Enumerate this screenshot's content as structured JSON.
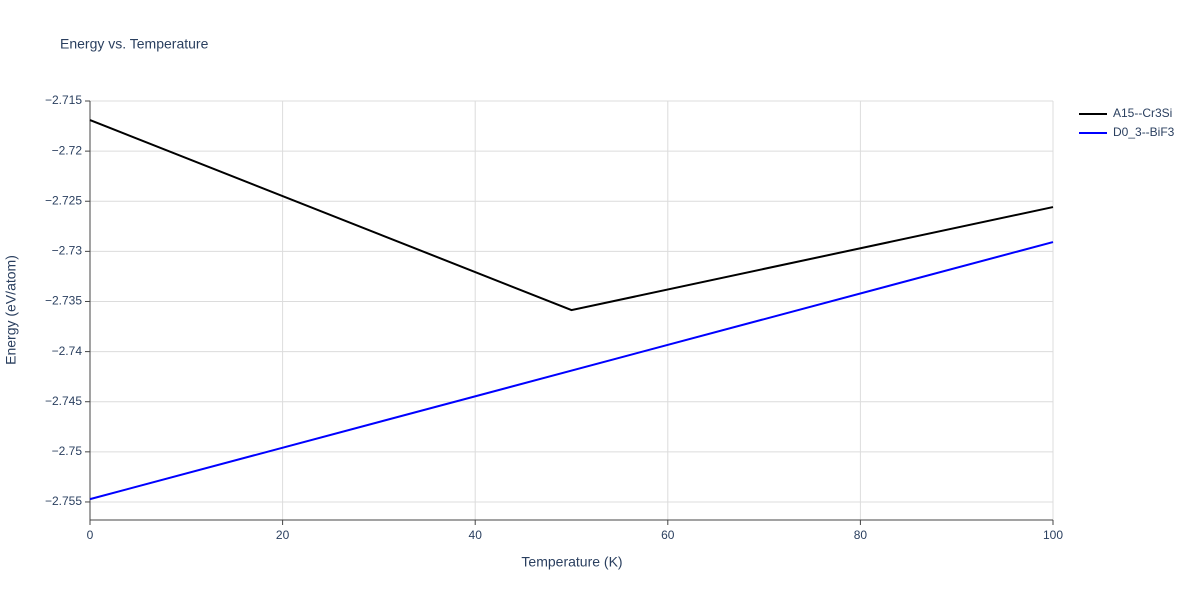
{
  "chart_data": {
    "type": "line",
    "title": "Energy vs. Temperature",
    "x_label": "Temperature (K)",
    "y_label": "Energy (eV/atom)",
    "series": [
      {
        "name": "A15--Cr3Si",
        "color": "#000000",
        "x": [
          0,
          50,
          100
        ],
        "values": [
          -2.7169,
          -2.73586,
          -2.72558
        ]
      },
      {
        "name": "D0_3--BiF3",
        "color": "#0000ff",
        "x": [
          0,
          100
        ],
        "values": [
          -2.75472,
          -2.72907
        ]
      }
    ],
    "xlim": [
      0,
      100
    ],
    "xticks": [
      0,
      20,
      40,
      60,
      80,
      100
    ],
    "ylim": [
      -2.7568,
      -2.715
    ],
    "yticks": [
      {
        "value": -2.715,
        "label": "−2.715"
      },
      {
        "value": -2.72,
        "label": "−2.72"
      },
      {
        "value": -2.725,
        "label": "−2.725"
      },
      {
        "value": -2.73,
        "label": "−2.73"
      },
      {
        "value": -2.735,
        "label": "−2.735"
      },
      {
        "value": -2.74,
        "label": "−2.74"
      },
      {
        "value": -2.745,
        "label": "−2.745"
      },
      {
        "value": -2.75,
        "label": "−2.75"
      },
      {
        "value": -2.755,
        "label": "−2.755"
      }
    ],
    "grid": true,
    "legend": "right"
  }
}
